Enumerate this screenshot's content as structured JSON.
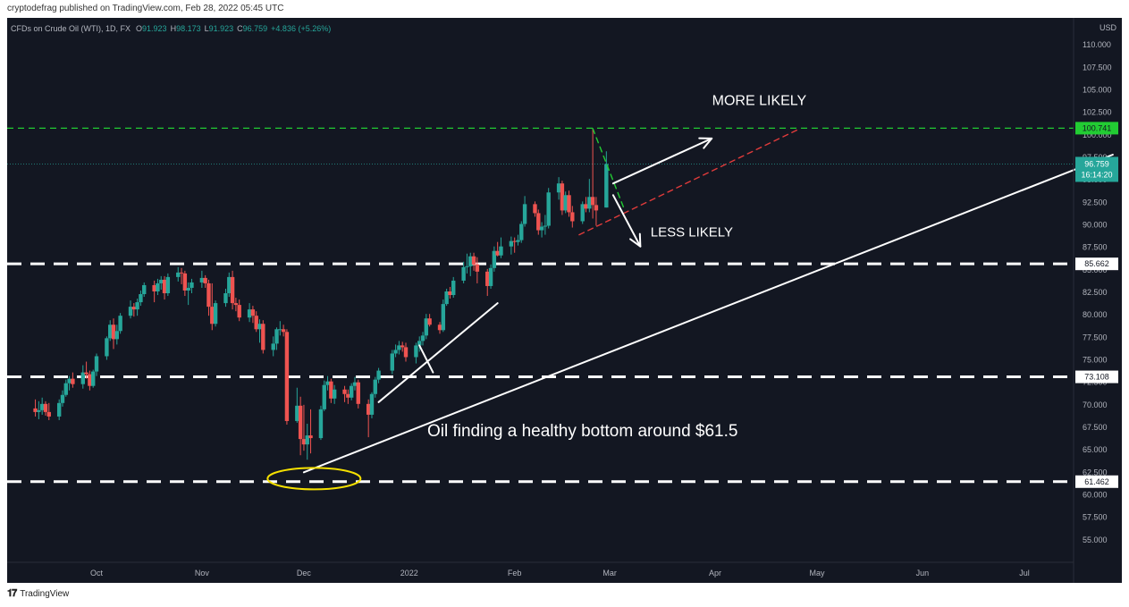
{
  "header": {
    "credit": "cryptodefrag published on TradingView.com, Feb 28, 2022 05:45 UTC"
  },
  "footer": {
    "brand": "TradingView"
  },
  "chart_data": {
    "type": "candlestick",
    "symbol_line": {
      "name": "CFDs on Crude Oil (WTI), 1D, FX",
      "o_label": "O",
      "o": "91.923",
      "h_label": "H",
      "h": "98.173",
      "l_label": "L",
      "l": "91.923",
      "c_label": "C",
      "c": "96.759",
      "change": "+4.836 (+5.26%)"
    },
    "currency": "USD",
    "y_axis": {
      "range": [
        52.5,
        112.8
      ],
      "ticks": [
        "55.000",
        "57.500",
        "60.000",
        "62.500",
        "65.000",
        "67.500",
        "70.000",
        "72.500",
        "75.000",
        "77.500",
        "80.000",
        "82.500",
        "85.000",
        "87.500",
        "90.000",
        "92.500",
        "95.000",
        "97.500",
        "100.000",
        "102.500",
        "105.000",
        "107.500",
        "110.000"
      ]
    },
    "x_axis": {
      "ticks": [
        {
          "label": "Oct",
          "date": "2021-10-01"
        },
        {
          "label": "Nov",
          "date": "2021-11-01"
        },
        {
          "label": "Dec",
          "date": "2021-12-01"
        },
        {
          "label": "2022",
          "date": "2022-01-01"
        },
        {
          "label": "Feb",
          "date": "2022-02-01"
        },
        {
          "label": "Mar",
          "date": "2022-03-01"
        },
        {
          "label": "Apr",
          "date": "2022-04-01"
        },
        {
          "label": "May",
          "date": "2022-05-01"
        },
        {
          "label": "Jun",
          "date": "2022-06-01"
        },
        {
          "label": "Jul",
          "date": "2022-07-01"
        }
      ]
    },
    "last_price": {
      "value": 96.759,
      "label": "96.759",
      "countdown": "16:14:20"
    },
    "horizontal_levels": [
      {
        "value": 100.741,
        "label": "100.741",
        "style": "green-dashed"
      },
      {
        "value": 85.662,
        "label": "85.662",
        "style": "white-dashed"
      },
      {
        "value": 73.108,
        "label": "73.108",
        "style": "white-dashed"
      },
      {
        "value": 61.462,
        "label": "61.462",
        "style": "white-dashed"
      }
    ],
    "candles": [
      {
        "d": "2021-09-13",
        "o": 69.6,
        "h": 70.6,
        "l": 68.7,
        "c": 69.2
      },
      {
        "d": "2021-09-14",
        "o": 69.2,
        "h": 70.4,
        "l": 68.4,
        "c": 69.4
      },
      {
        "d": "2021-09-15",
        "o": 69.4,
        "h": 70.8,
        "l": 68.9,
        "c": 70.1
      },
      {
        "d": "2021-09-16",
        "o": 70.1,
        "h": 70.4,
        "l": 68.8,
        "c": 69.2
      },
      {
        "d": "2021-09-17",
        "o": 69.2,
        "h": 70.2,
        "l": 68.3,
        "c": 68.7
      },
      {
        "d": "2021-09-20",
        "o": 68.7,
        "h": 70.6,
        "l": 68.3,
        "c": 70.2
      },
      {
        "d": "2021-09-21",
        "o": 70.2,
        "h": 71.6,
        "l": 69.8,
        "c": 71.1
      },
      {
        "d": "2021-09-22",
        "o": 71.1,
        "h": 72.8,
        "l": 70.9,
        "c": 72.4
      },
      {
        "d": "2021-09-23",
        "o": 72.4,
        "h": 73.2,
        "l": 71.6,
        "c": 72.9
      },
      {
        "d": "2021-09-24",
        "o": 72.9,
        "h": 73.6,
        "l": 71.9,
        "c": 72.3
      },
      {
        "d": "2021-09-27",
        "o": 72.3,
        "h": 74.4,
        "l": 71.8,
        "c": 73.6
      },
      {
        "d": "2021-09-28",
        "o": 73.6,
        "h": 74.8,
        "l": 72.9,
        "c": 73.4
      },
      {
        "d": "2021-09-29",
        "o": 73.4,
        "h": 73.8,
        "l": 71.6,
        "c": 72.1
      },
      {
        "d": "2021-09-30",
        "o": 72.1,
        "h": 73.9,
        "l": 71.9,
        "c": 73.7
      },
      {
        "d": "2021-10-01",
        "o": 73.7,
        "h": 75.7,
        "l": 73.2,
        "c": 75.4
      },
      {
        "d": "2021-10-04",
        "o": 75.4,
        "h": 77.6,
        "l": 75.0,
        "c": 77.4
      },
      {
        "d": "2021-10-05",
        "o": 77.4,
        "h": 79.4,
        "l": 77.1,
        "c": 78.9
      },
      {
        "d": "2021-10-06",
        "o": 78.9,
        "h": 79.6,
        "l": 76.2,
        "c": 77.3
      },
      {
        "d": "2021-10-07",
        "o": 77.3,
        "h": 78.9,
        "l": 76.7,
        "c": 78.2
      },
      {
        "d": "2021-10-08",
        "o": 78.2,
        "h": 80.2,
        "l": 77.9,
        "c": 79.9
      },
      {
        "d": "2021-10-11",
        "o": 79.9,
        "h": 81.6,
        "l": 79.6,
        "c": 80.9
      },
      {
        "d": "2021-10-12",
        "o": 80.9,
        "h": 81.3,
        "l": 79.8,
        "c": 80.6
      },
      {
        "d": "2021-10-13",
        "o": 80.6,
        "h": 81.8,
        "l": 79.9,
        "c": 81.4
      },
      {
        "d": "2021-10-14",
        "o": 81.4,
        "h": 82.7,
        "l": 81.0,
        "c": 82.3
      },
      {
        "d": "2021-10-15",
        "o": 82.3,
        "h": 83.6,
        "l": 82.0,
        "c": 83.3
      },
      {
        "d": "2021-10-18",
        "o": 83.3,
        "h": 83.8,
        "l": 81.4,
        "c": 82.6
      },
      {
        "d": "2021-10-19",
        "o": 82.6,
        "h": 84.0,
        "l": 82.2,
        "c": 83.5
      },
      {
        "d": "2021-10-20",
        "o": 83.5,
        "h": 84.3,
        "l": 82.8,
        "c": 83.9
      },
      {
        "d": "2021-10-21",
        "o": 83.9,
        "h": 84.3,
        "l": 81.7,
        "c": 82.4
      },
      {
        "d": "2021-10-22",
        "o": 82.4,
        "h": 84.6,
        "l": 82.1,
        "c": 84.2
      },
      {
        "d": "2021-10-25",
        "o": 84.2,
        "h": 85.3,
        "l": 83.7,
        "c": 84.7
      },
      {
        "d": "2021-10-26",
        "o": 84.7,
        "h": 85.2,
        "l": 83.4,
        "c": 84.6
      },
      {
        "d": "2021-10-27",
        "o": 84.6,
        "h": 84.9,
        "l": 82.1,
        "c": 82.7
      },
      {
        "d": "2021-10-28",
        "o": 82.7,
        "h": 83.6,
        "l": 81.1,
        "c": 83.0
      },
      {
        "d": "2021-10-29",
        "o": 83.0,
        "h": 84.0,
        "l": 82.4,
        "c": 83.6
      },
      {
        "d": "2021-11-01",
        "o": 83.6,
        "h": 84.9,
        "l": 83.0,
        "c": 84.1
      },
      {
        "d": "2021-11-02",
        "o": 84.1,
        "h": 84.4,
        "l": 83.0,
        "c": 83.5
      },
      {
        "d": "2021-11-03",
        "o": 83.5,
        "h": 83.9,
        "l": 79.9,
        "c": 80.9
      },
      {
        "d": "2021-11-04",
        "o": 80.9,
        "h": 83.5,
        "l": 78.3,
        "c": 79.0
      },
      {
        "d": "2021-11-05",
        "o": 79.0,
        "h": 81.6,
        "l": 78.7,
        "c": 81.3
      },
      {
        "d": "2021-11-08",
        "o": 81.3,
        "h": 82.9,
        "l": 80.9,
        "c": 82.4
      },
      {
        "d": "2021-11-09",
        "o": 82.4,
        "h": 84.7,
        "l": 82.0,
        "c": 84.2
      },
      {
        "d": "2021-11-10",
        "o": 84.2,
        "h": 84.9,
        "l": 80.6,
        "c": 81.3
      },
      {
        "d": "2021-11-11",
        "o": 81.3,
        "h": 81.9,
        "l": 80.4,
        "c": 81.1
      },
      {
        "d": "2021-11-12",
        "o": 81.1,
        "h": 81.7,
        "l": 79.3,
        "c": 79.7
      },
      {
        "d": "2021-11-15",
        "o": 79.7,
        "h": 81.3,
        "l": 79.2,
        "c": 80.6
      },
      {
        "d": "2021-11-16",
        "o": 80.6,
        "h": 81.0,
        "l": 79.1,
        "c": 79.9
      },
      {
        "d": "2021-11-17",
        "o": 79.9,
        "h": 80.4,
        "l": 78.1,
        "c": 78.4
      },
      {
        "d": "2021-11-18",
        "o": 78.4,
        "h": 79.5,
        "l": 76.9,
        "c": 79.0
      },
      {
        "d": "2021-11-19",
        "o": 79.0,
        "h": 79.4,
        "l": 75.7,
        "c": 76.1
      },
      {
        "d": "2021-11-22",
        "o": 76.1,
        "h": 77.6,
        "l": 75.4,
        "c": 76.8
      },
      {
        "d": "2021-11-23",
        "o": 76.8,
        "h": 78.6,
        "l": 76.1,
        "c": 78.4
      },
      {
        "d": "2021-11-24",
        "o": 78.4,
        "h": 79.3,
        "l": 77.7,
        "c": 78.4
      },
      {
        "d": "2021-11-25",
        "o": 78.4,
        "h": 78.9,
        "l": 77.6,
        "c": 78.1
      },
      {
        "d": "2021-11-26",
        "o": 78.1,
        "h": 78.4,
        "l": 67.8,
        "c": 68.2
      },
      {
        "d": "2021-11-29",
        "o": 68.2,
        "h": 71.9,
        "l": 68.0,
        "c": 69.9
      },
      {
        "d": "2021-11-30",
        "o": 69.9,
        "h": 70.9,
        "l": 64.4,
        "c": 66.2
      },
      {
        "d": "2021-12-01",
        "o": 66.2,
        "h": 70.0,
        "l": 64.9,
        "c": 65.6
      },
      {
        "d": "2021-12-02",
        "o": 65.6,
        "h": 67.9,
        "l": 63.9,
        "c": 66.6
      },
      {
        "d": "2021-12-03",
        "o": 66.6,
        "h": 69.5,
        "l": 64.6,
        "c": 66.3
      },
      {
        "d": "2021-12-06",
        "o": 66.3,
        "h": 69.9,
        "l": 66.1,
        "c": 69.5
      },
      {
        "d": "2021-12-07",
        "o": 69.5,
        "h": 72.7,
        "l": 69.3,
        "c": 72.2
      },
      {
        "d": "2021-12-08",
        "o": 72.2,
        "h": 73.2,
        "l": 71.6,
        "c": 72.6
      },
      {
        "d": "2021-12-09",
        "o": 72.6,
        "h": 72.9,
        "l": 70.2,
        "c": 70.7
      },
      {
        "d": "2021-12-10",
        "o": 70.7,
        "h": 72.2,
        "l": 70.1,
        "c": 71.7
      },
      {
        "d": "2021-12-13",
        "o": 71.7,
        "h": 72.1,
        "l": 70.3,
        "c": 71.2
      },
      {
        "d": "2021-12-14",
        "o": 71.2,
        "h": 71.7,
        "l": 70.1,
        "c": 70.8
      },
      {
        "d": "2021-12-15",
        "o": 70.8,
        "h": 72.4,
        "l": 70.5,
        "c": 72.1
      },
      {
        "d": "2021-12-16",
        "o": 72.1,
        "h": 73.1,
        "l": 71.6,
        "c": 72.5
      },
      {
        "d": "2021-12-17",
        "o": 72.5,
        "h": 72.8,
        "l": 69.6,
        "c": 70.1
      },
      {
        "d": "2021-12-20",
        "o": 70.1,
        "h": 70.6,
        "l": 66.4,
        "c": 68.9
      },
      {
        "d": "2021-12-21",
        "o": 68.9,
        "h": 71.4,
        "l": 68.5,
        "c": 71.2
      },
      {
        "d": "2021-12-22",
        "o": 71.2,
        "h": 73.1,
        "l": 70.8,
        "c": 72.8
      },
      {
        "d": "2021-12-23",
        "o": 72.8,
        "h": 74.1,
        "l": 72.4,
        "c": 73.8
      },
      {
        "d": "2021-12-27",
        "o": 73.8,
        "h": 76.1,
        "l": 73.4,
        "c": 75.7
      },
      {
        "d": "2021-12-28",
        "o": 75.7,
        "h": 76.7,
        "l": 75.3,
        "c": 76.1
      },
      {
        "d": "2021-12-29",
        "o": 76.1,
        "h": 77.1,
        "l": 75.6,
        "c": 76.6
      },
      {
        "d": "2021-12-30",
        "o": 76.6,
        "h": 77.0,
        "l": 75.9,
        "c": 76.4
      },
      {
        "d": "2021-12-31",
        "o": 76.4,
        "h": 76.9,
        "l": 74.8,
        "c": 75.3
      },
      {
        "d": "2022-01-03",
        "o": 75.3,
        "h": 76.9,
        "l": 74.6,
        "c": 76.6
      },
      {
        "d": "2022-01-04",
        "o": 76.6,
        "h": 77.6,
        "l": 75.9,
        "c": 77.1
      },
      {
        "d": "2022-01-05",
        "o": 77.1,
        "h": 78.1,
        "l": 76.6,
        "c": 77.7
      },
      {
        "d": "2022-01-06",
        "o": 77.7,
        "h": 80.1,
        "l": 77.3,
        "c": 79.6
      },
      {
        "d": "2022-01-07",
        "o": 79.6,
        "h": 80.1,
        "l": 78.7,
        "c": 78.9
      },
      {
        "d": "2022-01-10",
        "o": 78.9,
        "h": 79.2,
        "l": 77.9,
        "c": 78.3
      },
      {
        "d": "2022-01-11",
        "o": 78.3,
        "h": 81.7,
        "l": 78.1,
        "c": 81.2
      },
      {
        "d": "2022-01-12",
        "o": 81.2,
        "h": 82.9,
        "l": 81.0,
        "c": 82.6
      },
      {
        "d": "2022-01-13",
        "o": 82.6,
        "h": 83.1,
        "l": 81.8,
        "c": 82.2
      },
      {
        "d": "2022-01-14",
        "o": 82.2,
        "h": 84.2,
        "l": 81.9,
        "c": 83.8
      },
      {
        "d": "2022-01-17",
        "o": 83.8,
        "h": 85.9,
        "l": 83.5,
        "c": 85.3
      },
      {
        "d": "2022-01-18",
        "o": 85.3,
        "h": 86.8,
        "l": 84.6,
        "c": 85.4
      },
      {
        "d": "2022-01-19",
        "o": 85.4,
        "h": 86.9,
        "l": 84.3,
        "c": 86.5
      },
      {
        "d": "2022-01-20",
        "o": 86.5,
        "h": 86.9,
        "l": 84.9,
        "c": 85.6
      },
      {
        "d": "2022-01-21",
        "o": 85.6,
        "h": 86.4,
        "l": 83.5,
        "c": 84.8
      },
      {
        "d": "2022-01-24",
        "o": 84.8,
        "h": 85.1,
        "l": 82.1,
        "c": 83.2
      },
      {
        "d": "2022-01-25",
        "o": 83.2,
        "h": 85.6,
        "l": 82.9,
        "c": 85.2
      },
      {
        "d": "2022-01-26",
        "o": 85.2,
        "h": 87.6,
        "l": 84.8,
        "c": 87.1
      },
      {
        "d": "2022-01-27",
        "o": 87.1,
        "h": 88.1,
        "l": 86.5,
        "c": 86.6
      },
      {
        "d": "2022-01-28",
        "o": 86.6,
        "h": 88.6,
        "l": 86.3,
        "c": 87.6
      },
      {
        "d": "2022-01-31",
        "o": 87.6,
        "h": 88.7,
        "l": 86.7,
        "c": 88.2
      },
      {
        "d": "2022-02-01",
        "o": 88.2,
        "h": 88.6,
        "l": 86.9,
        "c": 88.1
      },
      {
        "d": "2022-02-02",
        "o": 88.1,
        "h": 88.9,
        "l": 87.7,
        "c": 88.3
      },
      {
        "d": "2022-02-03",
        "o": 88.3,
        "h": 90.4,
        "l": 88.0,
        "c": 90.1
      },
      {
        "d": "2022-02-04",
        "o": 90.1,
        "h": 93.2,
        "l": 89.8,
        "c": 92.3
      },
      {
        "d": "2022-02-07",
        "o": 92.3,
        "h": 92.6,
        "l": 90.9,
        "c": 91.3
      },
      {
        "d": "2022-02-08",
        "o": 91.3,
        "h": 91.7,
        "l": 88.9,
        "c": 89.4
      },
      {
        "d": "2022-02-09",
        "o": 89.4,
        "h": 90.3,
        "l": 88.6,
        "c": 89.8
      },
      {
        "d": "2022-02-10",
        "o": 89.8,
        "h": 91.1,
        "l": 88.9,
        "c": 89.9
      },
      {
        "d": "2022-02-11",
        "o": 89.9,
        "h": 94.1,
        "l": 89.6,
        "c": 93.6
      },
      {
        "d": "2022-02-14",
        "o": 93.6,
        "h": 95.3,
        "l": 92.8,
        "c": 94.6
      },
      {
        "d": "2022-02-15",
        "o": 94.6,
        "h": 94.9,
        "l": 91.1,
        "c": 91.6
      },
      {
        "d": "2022-02-16",
        "o": 91.6,
        "h": 93.7,
        "l": 91.3,
        "c": 93.3
      },
      {
        "d": "2022-02-17",
        "o": 93.3,
        "h": 93.8,
        "l": 90.9,
        "c": 91.4
      },
      {
        "d": "2022-02-18",
        "o": 91.4,
        "h": 92.1,
        "l": 89.7,
        "c": 90.4
      },
      {
        "d": "2022-02-21",
        "o": 90.4,
        "h": 92.6,
        "l": 90.1,
        "c": 92.3
      },
      {
        "d": "2022-02-22",
        "o": 92.3,
        "h": 93.1,
        "l": 91.4,
        "c": 91.8
      },
      {
        "d": "2022-02-23",
        "o": 91.8,
        "h": 95.1,
        "l": 91.4,
        "c": 93.1
      },
      {
        "d": "2022-02-24",
        "o": 93.1,
        "h": 100.7,
        "l": 90.7,
        "c": 92.2
      },
      {
        "d": "2022-02-25",
        "o": 92.2,
        "h": 93.1,
        "l": 89.9,
        "c": 91.6
      },
      {
        "d": "2022-02-28",
        "o": 91.923,
        "h": 98.173,
        "l": 91.923,
        "c": 96.759
      }
    ],
    "drawings": [
      {
        "name": "main-uptrend-line",
        "kind": "line",
        "color": "#ffffff",
        "from": {
          "d": "2021-12-01",
          "v": 62.5
        },
        "to": {
          "d": "2022-07-27",
          "v": 97.8
        }
      },
      {
        "name": "short-uptrend-line",
        "kind": "line",
        "color": "#ffffff",
        "from": {
          "d": "2021-12-23",
          "v": 70.3
        },
        "to": {
          "d": "2022-01-27",
          "v": 81.3
        }
      },
      {
        "name": "trendline-break-tick",
        "kind": "line",
        "color": "#ffffff",
        "from": {
          "d": "2022-01-04",
          "v": 76.6
        },
        "to": {
          "d": "2022-01-08",
          "v": 73.6
        }
      },
      {
        "name": "red-dashed-projection",
        "kind": "dashed",
        "color": "#e03b3b",
        "from": {
          "d": "2022-02-20",
          "v": 88.9
        },
        "to": {
          "d": "2022-04-26",
          "v": 100.7
        }
      },
      {
        "name": "green-dashed-drop",
        "kind": "dashed",
        "color": "#22cc33",
        "from": {
          "d": "2022-02-24",
          "v": 100.7
        },
        "to": {
          "d": "2022-03-05",
          "v": 92.0
        }
      },
      {
        "name": "more-likely-arrow",
        "kind": "arrow",
        "color": "#ffffff",
        "from": {
          "d": "2022-03-02",
          "v": 94.6
        },
        "to": {
          "d": "2022-03-31",
          "v": 99.6
        }
      },
      {
        "name": "less-likely-arrow",
        "kind": "arrow",
        "color": "#ffffff",
        "from": {
          "d": "2022-03-02",
          "v": 93.3
        },
        "to": {
          "d": "2022-03-10",
          "v": 87.6
        }
      }
    ],
    "bottom_ellipse": {
      "d": "2021-12-04",
      "v": 61.8,
      "color": "#f5e000"
    },
    "annotations": [
      {
        "name": "more-likely-label",
        "text": "MORE LIKELY",
        "d": "2022-04-14",
        "v": 103.3,
        "size": 16,
        "anchor": "middle"
      },
      {
        "name": "less-likely-label",
        "text": "LESS LIKELY",
        "d": "2022-03-13",
        "v": 88.7,
        "size": 15,
        "anchor": "start"
      },
      {
        "name": "bottom-note",
        "text": "Oil finding a healthy bottom around $61.5",
        "d": "2022-02-21",
        "v": 66.5,
        "size": 19,
        "anchor": "middle"
      }
    ],
    "colors": {
      "up": "#26a69a",
      "down": "#ef5350",
      "background": "#131722",
      "axis_text": "#b2b5be",
      "level_green": "#22cc33"
    },
    "grid": false
  }
}
